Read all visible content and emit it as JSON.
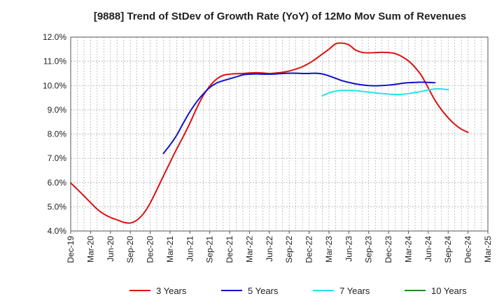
{
  "chart_data": {
    "type": "line",
    "title": "[9888]  Trend of StDev of Growth Rate (YoY) of 12Mo Mov Sum of Revenues",
    "xlabel": "",
    "ylabel": "",
    "ylim": [
      4.0,
      12.0
    ],
    "y_ticks": [
      4.0,
      5.0,
      6.0,
      7.0,
      8.0,
      9.0,
      10.0,
      11.0,
      12.0
    ],
    "y_tick_labels": [
      "4.0%",
      "5.0%",
      "6.0%",
      "7.0%",
      "8.0%",
      "9.0%",
      "10.0%",
      "11.0%",
      "12.0%"
    ],
    "x_tick_labels": [
      "Dec-19",
      "Mar-20",
      "Jun-20",
      "Sep-20",
      "Dec-20",
      "Mar-21",
      "Jun-21",
      "Sep-21",
      "Dec-21",
      "Mar-22",
      "Jun-22",
      "Sep-22",
      "Dec-22",
      "Mar-23",
      "Jun-23",
      "Sep-23",
      "Dec-23",
      "Mar-24",
      "Jun-24",
      "Sep-24",
      "Dec-24",
      "Mar-25"
    ],
    "grid": true,
    "legend_position": "bottom",
    "series": [
      {
        "name": "3 Years",
        "color": "#dd1111",
        "start_index": 0,
        "values": [
          5.98,
          5.72,
          5.45,
          5.17,
          4.9,
          4.7,
          4.56,
          4.46,
          4.36,
          4.33,
          4.45,
          4.72,
          5.15,
          5.7,
          6.27,
          6.83,
          7.38,
          7.9,
          8.45,
          9.05,
          9.58,
          9.98,
          10.26,
          10.42,
          10.47,
          10.49,
          10.5,
          10.52,
          10.53,
          10.52,
          10.5,
          10.52,
          10.55,
          10.6,
          10.68,
          10.78,
          10.92,
          11.1,
          11.3,
          11.5,
          11.72,
          11.75,
          11.68,
          11.47,
          11.37,
          11.35,
          11.36,
          11.37,
          11.36,
          11.32,
          11.2,
          11.02,
          10.75,
          10.4,
          9.9,
          9.4,
          9.0,
          8.67,
          8.4,
          8.2,
          8.07
        ]
      },
      {
        "name": "5 Years",
        "color": "#1111cc",
        "start_index": 14,
        "values": [
          7.2,
          7.55,
          7.95,
          8.45,
          8.92,
          9.32,
          9.65,
          9.92,
          10.1,
          10.2,
          10.28,
          10.36,
          10.44,
          10.47,
          10.48,
          10.47,
          10.47,
          10.48,
          10.5,
          10.51,
          10.51,
          10.5,
          10.5,
          10.51,
          10.48,
          10.4,
          10.3,
          10.2,
          10.13,
          10.07,
          10.03,
          10.0,
          9.99,
          10.0,
          10.02,
          10.05,
          10.09,
          10.12,
          10.13,
          10.14,
          10.13,
          10.12
        ]
      },
      {
        "name": "7 Years",
        "color": "#22e5e5",
        "start_index": 38,
        "values": [
          9.58,
          9.7,
          9.77,
          9.8,
          9.8,
          9.79,
          9.76,
          9.73,
          9.7,
          9.67,
          9.65,
          9.63,
          9.64,
          9.67,
          9.71,
          9.76,
          9.82,
          9.86,
          9.86,
          9.83
        ]
      },
      {
        "name": "10 Years",
        "color": "#228822",
        "start_index": 0,
        "values": []
      }
    ]
  }
}
